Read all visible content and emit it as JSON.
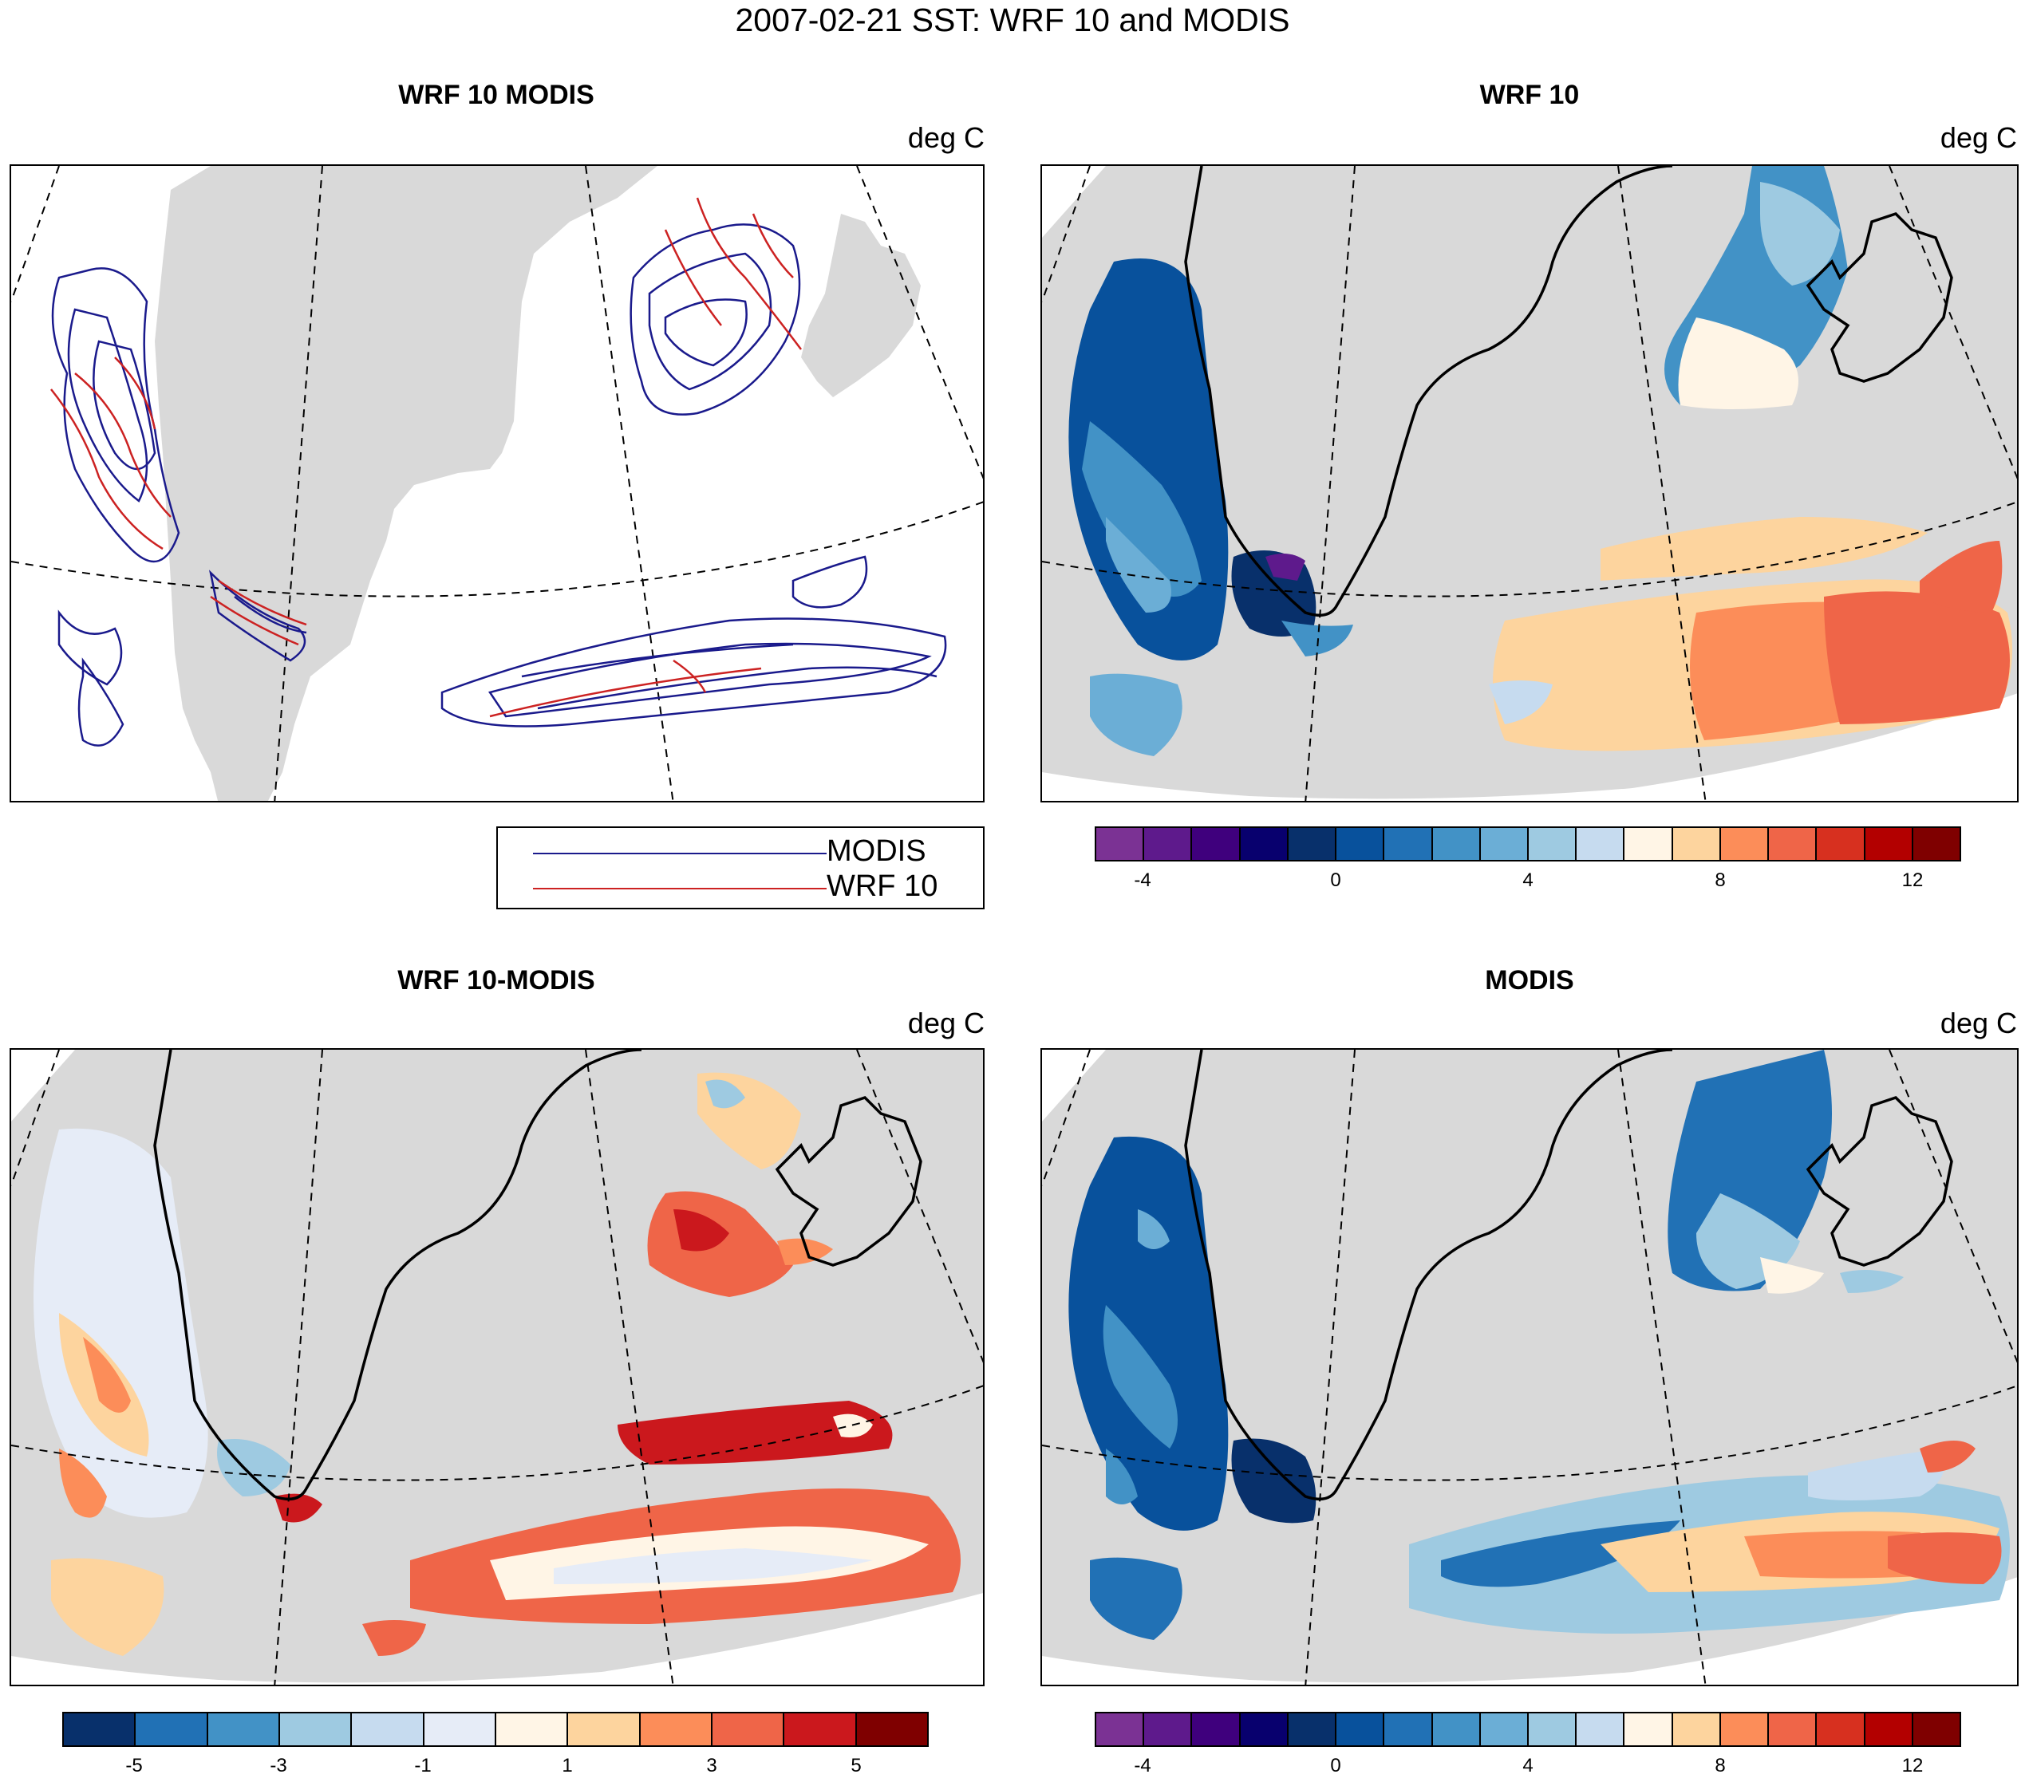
{
  "title": "2007-02-21 SST: WRF 10 and MODIS",
  "colors": {
    "modis_line": "#1a1a8c",
    "wrf_line": "#cc2222",
    "land_gray": "#d9d9d9",
    "coast": "#000000"
  },
  "panels": {
    "top_left": {
      "title": "WRF 10 MODIS",
      "units": "deg C",
      "legend": [
        {
          "label": "MODIS",
          "color": "#1a1a8c"
        },
        {
          "label": "WRF 10",
          "color": "#cc2222"
        }
      ]
    },
    "top_right": {
      "title": "WRF 10",
      "units": "deg C",
      "colorbar": {
        "colors": [
          "#7b3294",
          "#5e1a8c",
          "#3f007d",
          "#08006e",
          "#08306b",
          "#08519c",
          "#2171b5",
          "#4292c6",
          "#6baed6",
          "#9ecae1",
          "#c6dbef",
          "#fff5e6",
          "#fdd49e",
          "#fc8d59",
          "#ef6548",
          "#d7301f",
          "#b30000",
          "#7f0000"
        ],
        "ticks": [
          "-4",
          "0",
          "4",
          "8",
          "12"
        ]
      }
    },
    "bottom_left": {
      "title": "WRF 10-MODIS",
      "units": "deg C",
      "colorbar": {
        "colors": [
          "#08306b",
          "#2171b5",
          "#4292c6",
          "#9ecae1",
          "#c6dbef",
          "#e6ecf7",
          "#fff5e6",
          "#fdd49e",
          "#fc8d59",
          "#ef6548",
          "#cb181d",
          "#7f0000"
        ],
        "ticks": [
          "-5",
          "-3",
          "-1",
          "1",
          "3",
          "5"
        ]
      }
    },
    "bottom_right": {
      "title": "MODIS",
      "units": "deg C",
      "colorbar": {
        "colors": [
          "#7b3294",
          "#5e1a8c",
          "#3f007d",
          "#08006e",
          "#08306b",
          "#08519c",
          "#2171b5",
          "#4292c6",
          "#6baed6",
          "#9ecae1",
          "#c6dbef",
          "#fff5e6",
          "#fdd49e",
          "#fc8d59",
          "#ef6548",
          "#d7301f",
          "#b30000",
          "#7f0000"
        ],
        "ticks": [
          "-4",
          "0",
          "4",
          "8",
          "12"
        ]
      }
    }
  }
}
